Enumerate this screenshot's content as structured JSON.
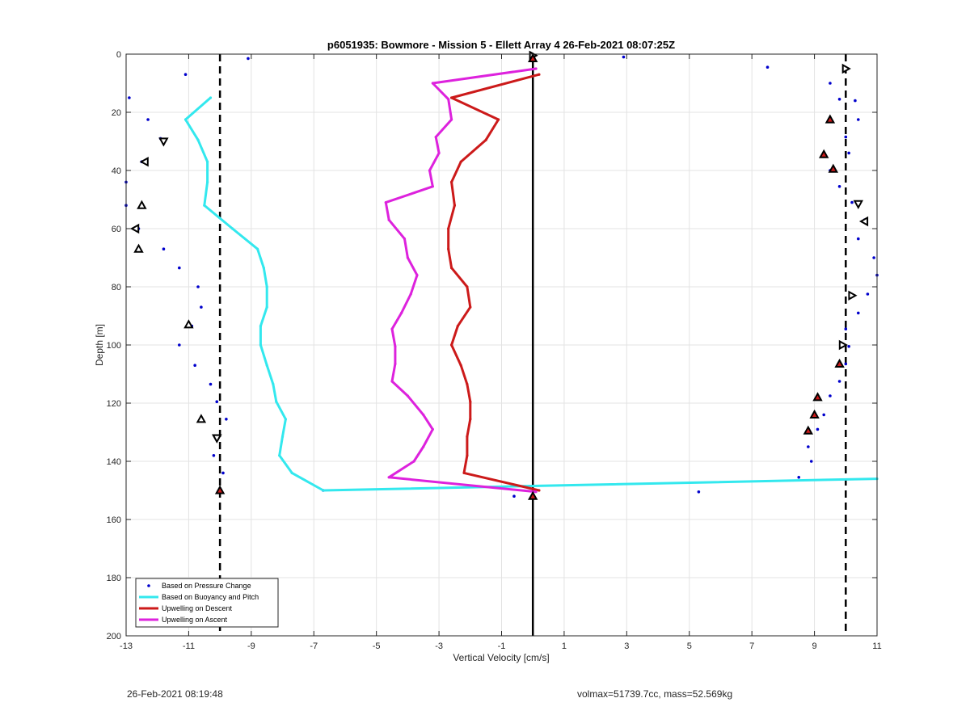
{
  "chart_data": {
    "type": "line",
    "title": "p6051935: Bowmore - Mission 5 - Ellett Array 4 26-Feb-2021 08:07:25Z",
    "xlabel": "Vertical Velocity [cm/s]",
    "ylabel": "Depth [m]",
    "xlim": [
      -13,
      11
    ],
    "ylim": [
      0,
      200
    ],
    "y_reversed": true,
    "grid": true,
    "xticks": [
      -13,
      -11,
      -9,
      -7,
      -5,
      -3,
      -1,
      1,
      3,
      5,
      7,
      9,
      11
    ],
    "yticks": [
      0,
      20,
      40,
      60,
      80,
      100,
      120,
      140,
      160,
      180,
      200
    ],
    "xtick_labels": [
      "-13",
      "-11",
      "-9",
      "-7",
      "-5",
      "-3",
      "-1",
      "1",
      "3",
      "5",
      "7",
      "9",
      "11"
    ],
    "ytick_labels": [
      "0",
      "20",
      "40",
      "60",
      "80",
      "100",
      "120",
      "140",
      "160",
      "180",
      "200"
    ],
    "legend_position": "bottom-left",
    "reference_lines": [
      {
        "x": -10,
        "style": "dashed",
        "color": "#000000"
      },
      {
        "x": 0,
        "style": "solid",
        "color": "#000000"
      },
      {
        "x": 10,
        "style": "dashed",
        "color": "#000000"
      }
    ],
    "series": [
      {
        "name": "Based on Pressure Change",
        "style": "dots",
        "color": "#0000cc",
        "points": [
          [
            -9.1,
            1.5
          ],
          [
            -11.1,
            7
          ],
          [
            2.9,
            1
          ],
          [
            7.5,
            4.5
          ],
          [
            9.5,
            10
          ],
          [
            9.8,
            15.5
          ],
          [
            -12.9,
            15
          ],
          [
            -12.3,
            22.5
          ],
          [
            -11.9,
            29
          ],
          [
            -12.5,
            37
          ],
          [
            -13,
            44
          ],
          [
            -13,
            52
          ],
          [
            -12.6,
            60
          ],
          [
            -11.8,
            67
          ],
          [
            -11.3,
            73.5
          ],
          [
            -10.7,
            80
          ],
          [
            -10.6,
            87
          ],
          [
            -10.9,
            93.5
          ],
          [
            -11.3,
            100
          ],
          [
            -10.8,
            107
          ],
          [
            -10.3,
            113.5
          ],
          [
            -10.1,
            119.5
          ],
          [
            -9.8,
            125.5
          ],
          [
            -10.1,
            131.5
          ],
          [
            -10.2,
            138
          ],
          [
            -9.9,
            144
          ],
          [
            -10.0,
            150
          ],
          [
            -6.7,
            150
          ],
          [
            -0.6,
            152
          ],
          [
            5.3,
            150.5
          ],
          [
            10.0,
            5
          ],
          [
            10.3,
            16
          ],
          [
            10.4,
            22.5
          ],
          [
            10.0,
            28.5
          ],
          [
            10.1,
            34
          ],
          [
            9.5,
            40
          ],
          [
            9.8,
            45.5
          ],
          [
            10.2,
            51
          ],
          [
            10.6,
            57
          ],
          [
            10.4,
            63.5
          ],
          [
            10.9,
            70
          ],
          [
            11.0,
            76
          ],
          [
            10.7,
            82.5
          ],
          [
            10.4,
            89
          ],
          [
            10.0,
            94.5
          ],
          [
            10.1,
            100.5
          ],
          [
            10.0,
            106.5
          ],
          [
            9.8,
            112.5
          ],
          [
            9.5,
            117.5
          ],
          [
            9.3,
            124
          ],
          [
            9.1,
            129
          ],
          [
            8.8,
            135
          ],
          [
            8.9,
            140
          ],
          [
            8.5,
            145.5
          ]
        ]
      },
      {
        "name": "Based on Buoyancy and Pitch",
        "style": "line",
        "color": "#33e8ee",
        "points": [
          [
            -10.3,
            15
          ],
          [
            -11.1,
            22.5
          ],
          [
            -10.7,
            29.5
          ],
          [
            -10.4,
            37
          ],
          [
            -10.4,
            44
          ],
          [
            -10.5,
            52
          ],
          [
            -9.6,
            60
          ],
          [
            -8.8,
            67
          ],
          [
            -8.6,
            73.5
          ],
          [
            -8.5,
            80
          ],
          [
            -8.5,
            87
          ],
          [
            -8.7,
            93.5
          ],
          [
            -8.7,
            100
          ],
          [
            -8.5,
            107
          ],
          [
            -8.3,
            113.5
          ],
          [
            -8.2,
            119.5
          ],
          [
            -7.9,
            125.5
          ],
          [
            -8.0,
            131.5
          ],
          [
            -8.1,
            138
          ],
          [
            -7.7,
            144
          ],
          [
            -6.7,
            150
          ],
          [
            11.0,
            146
          ]
        ]
      },
      {
        "name": "Upwelling on Descent",
        "style": "line",
        "color": "#cc1a1a",
        "points": [
          [
            0.2,
            7
          ],
          [
            -2.6,
            15
          ],
          [
            -1.1,
            22.5
          ],
          [
            -1.5,
            29.5
          ],
          [
            -2.3,
            37
          ],
          [
            -2.6,
            44
          ],
          [
            -2.5,
            52
          ],
          [
            -2.7,
            60
          ],
          [
            -2.7,
            67
          ],
          [
            -2.6,
            73.5
          ],
          [
            -2.1,
            80
          ],
          [
            -2.0,
            87
          ],
          [
            -2.4,
            93.5
          ],
          [
            -2.6,
            100
          ],
          [
            -2.3,
            107
          ],
          [
            -2.1,
            113.5
          ],
          [
            -2.0,
            119.5
          ],
          [
            -2.0,
            125.5
          ],
          [
            -2.1,
            131.5
          ],
          [
            -2.1,
            138
          ],
          [
            -2.2,
            144
          ],
          [
            0.2,
            150
          ]
        ]
      },
      {
        "name": "Upwelling on Ascent",
        "style": "line",
        "color": "#dd22dd",
        "points": [
          [
            0.1,
            5
          ],
          [
            -3.2,
            10
          ],
          [
            -2.7,
            15.5
          ],
          [
            -2.6,
            22.5
          ],
          [
            -3.1,
            28.5
          ],
          [
            -3.0,
            34
          ],
          [
            -3.3,
            40
          ],
          [
            -3.2,
            45.5
          ],
          [
            -4.7,
            51
          ],
          [
            -4.6,
            57
          ],
          [
            -4.1,
            63.5
          ],
          [
            -4.0,
            70
          ],
          [
            -3.7,
            76
          ],
          [
            -3.9,
            82.5
          ],
          [
            -4.2,
            89
          ],
          [
            -4.5,
            94.5
          ],
          [
            -4.4,
            100.5
          ],
          [
            -4.4,
            106.5
          ],
          [
            -4.5,
            112.5
          ],
          [
            -4.0,
            117.5
          ],
          [
            -3.5,
            124
          ],
          [
            -3.2,
            129
          ],
          [
            -3.5,
            135
          ],
          [
            -3.8,
            140
          ],
          [
            -4.6,
            145.5
          ],
          [
            0.1,
            150.5
          ]
        ]
      }
    ],
    "markers": [
      {
        "shape": "tri-right",
        "fill": "none",
        "points": [
          [
            0.0,
            0.5
          ],
          [
            10.0,
            5
          ],
          [
            10.2,
            83
          ],
          [
            9.9,
            100
          ]
        ]
      },
      {
        "shape": "tri-down",
        "fill": "none",
        "points": [
          [
            -11.8,
            30
          ],
          [
            10.4,
            51.5
          ],
          [
            -10.1,
            132
          ]
        ]
      },
      {
        "shape": "tri-left",
        "fill": "none",
        "points": [
          [
            -12.4,
            37
          ],
          [
            10.6,
            57.5
          ],
          [
            -12.7,
            60
          ]
        ]
      },
      {
        "shape": "tri-up",
        "fill": "none",
        "points": [
          [
            -12.5,
            52
          ],
          [
            -12.6,
            67
          ],
          [
            -11.0,
            93
          ],
          [
            -10.6,
            125.5
          ]
        ]
      },
      {
        "shape": "tri-up",
        "fill": "#cc1a1a",
        "points": [
          [
            0.0,
            1.5
          ],
          [
            9.5,
            22.5
          ],
          [
            9.3,
            34.5
          ],
          [
            9.6,
            39.5
          ],
          [
            9.8,
            106.5
          ],
          [
            9.1,
            118
          ],
          [
            9.0,
            124
          ],
          [
            8.8,
            129.5
          ],
          [
            -10.0,
            150
          ],
          [
            0.0,
            152
          ]
        ]
      },
      {
        "shape": "tri-down",
        "fill": "none",
        "points": [
          [
            -10.1,
            132
          ]
        ]
      }
    ]
  },
  "footer": {
    "timestamp": "26-Feb-2021 08:19:48",
    "stats": "volmax=51739.7cc, mass=52.569kg"
  }
}
